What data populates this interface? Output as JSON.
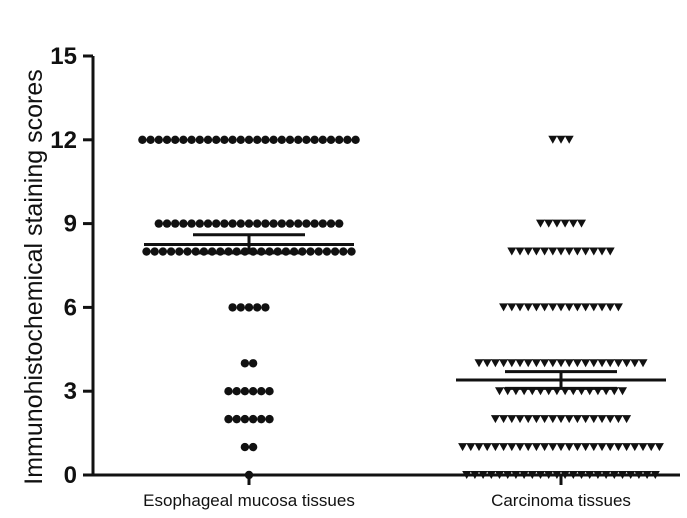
{
  "chart_data": {
    "type": "scatter",
    "title": "",
    "xlabel": "",
    "ylabel": "Immunohistochemical staining scores",
    "ylim": [
      0,
      15
    ],
    "yticks": [
      "0",
      "3",
      "6",
      "9",
      "12",
      "15"
    ],
    "categories": [
      "Esophageal mucosa tissues",
      "Carcinoma tissues"
    ],
    "grid": false,
    "legend": "none",
    "series": [
      {
        "marker": "circle",
        "color": "#111111",
        "points": [
          {
            "y": 12,
            "count": 27
          },
          {
            "y": 9,
            "count": 23
          },
          {
            "y": 8,
            "count": 26
          },
          {
            "y": 6,
            "count": 5
          },
          {
            "y": 4,
            "count": 2
          },
          {
            "y": 3,
            "count": 6
          },
          {
            "y": 2,
            "count": 6
          },
          {
            "y": 1,
            "count": 2
          },
          {
            "y": 0,
            "count": 1
          }
        ],
        "mean": 8.25,
        "sem_lower": 7.95,
        "sem_upper": 8.6
      },
      {
        "marker": "triangle-down",
        "color": "#111111",
        "points": [
          {
            "y": 12,
            "count": 3
          },
          {
            "y": 9,
            "count": 6
          },
          {
            "y": 8,
            "count": 13
          },
          {
            "y": 6,
            "count": 15
          },
          {
            "y": 4,
            "count": 21
          },
          {
            "y": 3,
            "count": 16
          },
          {
            "y": 2,
            "count": 17
          },
          {
            "y": 1,
            "count": 25
          },
          {
            "y": 0,
            "count": 24
          }
        ],
        "mean": 3.4,
        "sem_lower": 3.1,
        "sem_upper": 3.7
      }
    ]
  }
}
